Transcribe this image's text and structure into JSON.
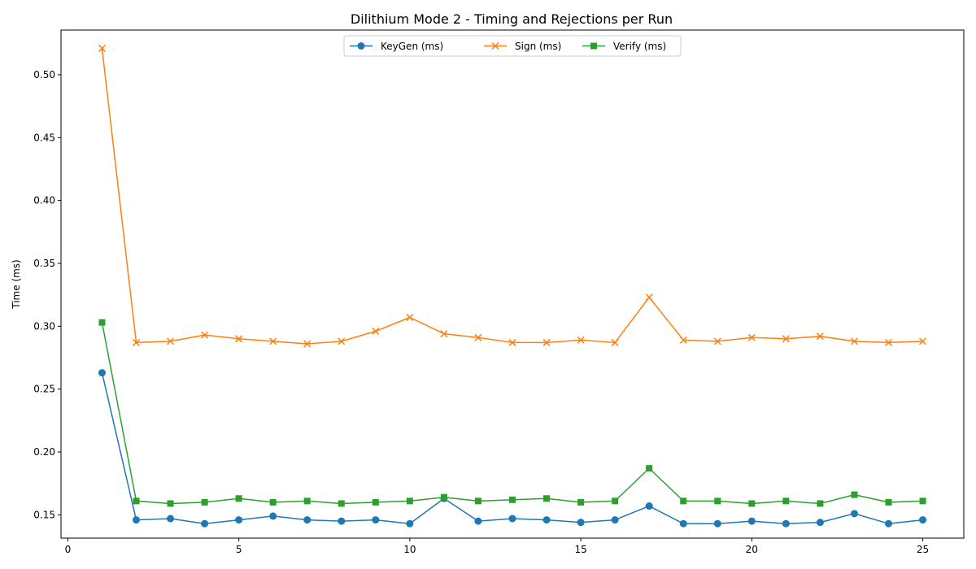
{
  "chart_data": {
    "type": "line",
    "title": "Dilithium Mode 2 - Timing and Rejections per Run",
    "xlabel": "",
    "ylabel": "Time (ms)",
    "xlim": [
      -0.2,
      26.2
    ],
    "ylim": [
      0.1315,
      0.5355
    ],
    "xticks": [
      0,
      5,
      10,
      15,
      20,
      25
    ],
    "yticks": [
      0.15,
      0.2,
      0.25,
      0.3,
      0.35,
      0.4,
      0.45,
      0.5
    ],
    "grid": false,
    "legend_position": "top-center",
    "x": [
      1,
      2,
      3,
      4,
      5,
      6,
      7,
      8,
      9,
      10,
      11,
      12,
      13,
      14,
      15,
      16,
      17,
      18,
      19,
      20,
      21,
      22,
      23,
      24,
      25
    ],
    "series": [
      {
        "name": "KeyGen (ms)",
        "color": "#1f77b4",
        "marker": "circle",
        "values": [
          0.263,
          0.146,
          0.147,
          0.143,
          0.146,
          0.149,
          0.146,
          0.145,
          0.146,
          0.143,
          0.163,
          0.145,
          0.147,
          0.146,
          0.144,
          0.146,
          0.157,
          0.143,
          0.143,
          0.145,
          0.143,
          0.144,
          0.151,
          0.143,
          0.146
        ]
      },
      {
        "name": "Sign (ms)",
        "color": "#ff7f0e",
        "marker": "x",
        "values": [
          0.521,
          0.287,
          0.288,
          0.293,
          0.29,
          0.288,
          0.286,
          0.288,
          0.296,
          0.307,
          0.294,
          0.291,
          0.287,
          0.287,
          0.289,
          0.287,
          0.323,
          0.289,
          0.288,
          0.291,
          0.29,
          0.292,
          0.288,
          0.287,
          0.288
        ]
      },
      {
        "name": "Verify (ms)",
        "color": "#2ca02c",
        "marker": "square",
        "values": [
          0.303,
          0.161,
          0.159,
          0.16,
          0.163,
          0.16,
          0.161,
          0.159,
          0.16,
          0.161,
          0.164,
          0.161,
          0.162,
          0.163,
          0.16,
          0.161,
          0.187,
          0.161,
          0.161,
          0.159,
          0.161,
          0.159,
          0.166,
          0.16,
          0.161
        ]
      }
    ]
  }
}
